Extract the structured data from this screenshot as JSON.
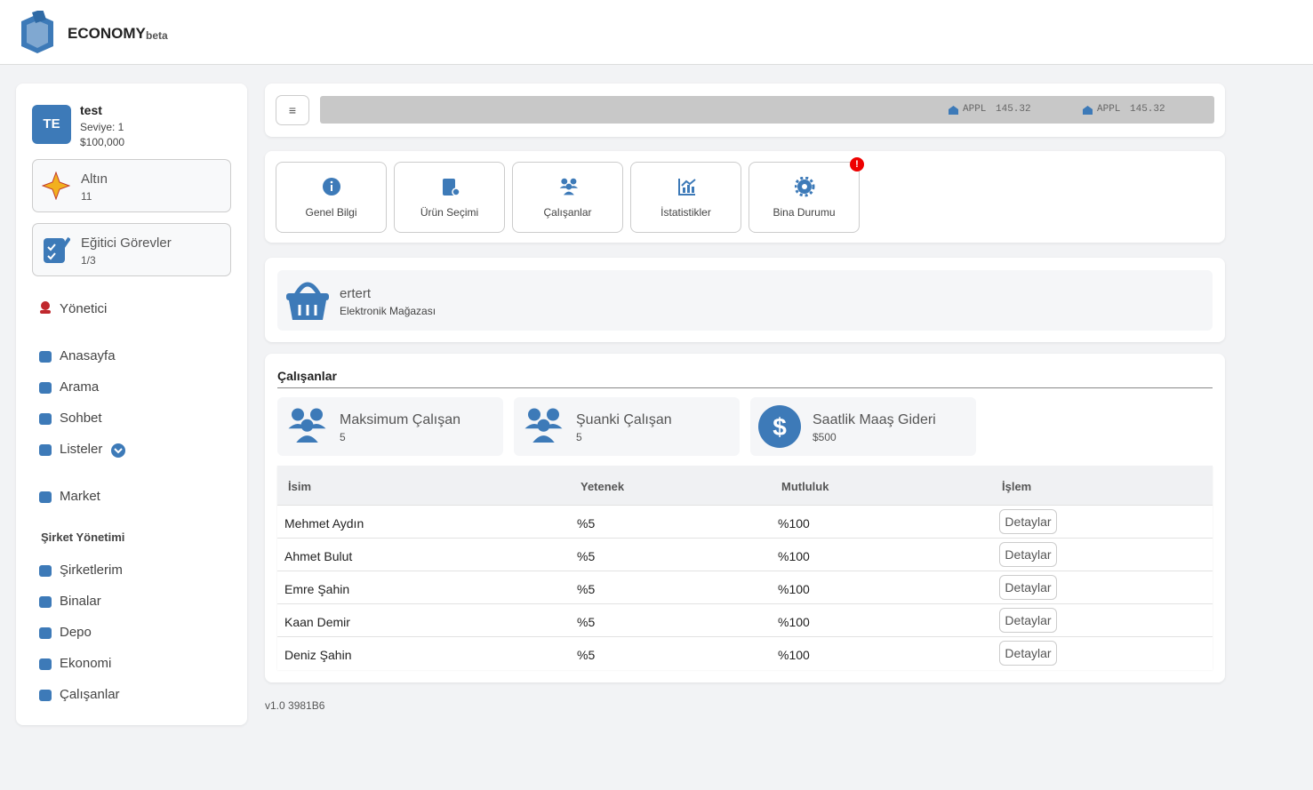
{
  "header": {
    "brand": "ECONOMY",
    "brand_suffix": "beta"
  },
  "user": {
    "initials": "TE",
    "name": "test",
    "level": "Seviye: 1",
    "money": "$100,000"
  },
  "gold": {
    "label": "Altın",
    "value": "11"
  },
  "tasks": {
    "label": "Eğitici Görevler",
    "value": "1/3"
  },
  "nav": {
    "admin": "Yönetici",
    "items": [
      "Anasayfa",
      "Arama",
      "Sohbet",
      "Listeler"
    ],
    "market": "Market",
    "section": "Şirket Yönetimi",
    "company_items": [
      "Şirketlerim",
      "Binalar",
      "Depo",
      "Ekonomi",
      "Çalışanlar"
    ]
  },
  "ticker": [
    {
      "symbol": "APPL",
      "price": "145.32"
    },
    {
      "symbol": "APPL",
      "price": "145.32"
    }
  ],
  "tabs": [
    "Genel Bilgi",
    "Ürün Seçimi",
    "Çalışanlar",
    "İstatistikler",
    "Bina Durumu"
  ],
  "alert": "!",
  "store": {
    "name": "ertert",
    "type": "Elektronik Mağazası"
  },
  "employees": {
    "title": "Çalışanlar",
    "stats": [
      {
        "label": "Maksimum Çalışan",
        "value": "5"
      },
      {
        "label": "Şuanki Çalışan",
        "value": "5"
      },
      {
        "label": "Saatlik Maaş Gideri",
        "value": "$500"
      }
    ],
    "columns": [
      "İsim",
      "Yetenek",
      "Mutluluk",
      "İşlem"
    ],
    "rows": [
      [
        "Mehmet Aydın",
        "%5",
        "%100",
        "Detaylar"
      ],
      [
        "Ahmet Bulut",
        "%5",
        "%100",
        "Detaylar"
      ],
      [
        "Emre Şahin",
        "%5",
        "%100",
        "Detaylar"
      ],
      [
        "Kaan Demir",
        "%5",
        "%100",
        "Detaylar"
      ],
      [
        "Deniz Şahin",
        "%5",
        "%100",
        "Detaylar"
      ]
    ]
  },
  "version": "v1.0 3981B6"
}
